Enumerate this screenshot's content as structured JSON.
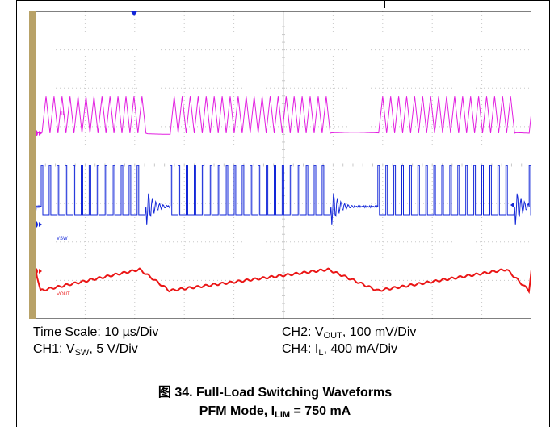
{
  "legend": {
    "time": {
      "text": "Time Scale: 10 µs/Div"
    },
    "ch2": {
      "pre": "CH2: V",
      "sub": "OUT",
      "post": ", 100 mV/Div"
    },
    "ch1": {
      "pre": "CH1: V",
      "sub": "SW",
      "post": ", 5 V/Div"
    },
    "ch4": {
      "pre": "CH4: I",
      "sub": "L",
      "post": ", 400 mA/Div"
    }
  },
  "caption": {
    "line1": "图 34. Full-Load Switching Waveforms",
    "line2_pre": "PFM Mode, I",
    "line2_sub": "LIM",
    "line2_post": " = 750 mA"
  },
  "chart_data": {
    "type": "line",
    "grid": true,
    "x_divisions": 10,
    "y_divisions": 8,
    "time_per_div_us": 10,
    "colors": {
      "ch4": "#e21fe0",
      "ch1": "#1226d8",
      "ch2": "#ea1515",
      "grid": "#c8c8c8",
      "left_bar": "#b8a268"
    },
    "channel_markers": [
      {
        "id": "ch4",
        "label": "4"
      },
      {
        "id": "ch1",
        "label": "1"
      },
      {
        "id": "ch2",
        "label": "2"
      }
    ],
    "trace_labels": {
      "ch4": "IL",
      "ch1": "VSW",
      "ch2": "VOUT"
    },
    "pfm_bursts_div": [
      [
        0.1,
        2.1
      ],
      [
        2.7,
        5.9
      ],
      [
        6.9,
        9.5
      ],
      [
        9.95,
        10.0
      ]
    ],
    "series": [
      {
        "id": "ch4",
        "name": "IL",
        "peak_div": 1.75,
        "valley_div": 0.0,
        "teeth_per_div": 6.2
      },
      {
        "id": "ch1",
        "name": "VSW",
        "high_div": 1.5,
        "low_div": 0.0,
        "pulses_per_div": 6.2
      },
      {
        "id": "ch2",
        "name": "VOUT",
        "ripple_div": 0.55
      }
    ]
  }
}
